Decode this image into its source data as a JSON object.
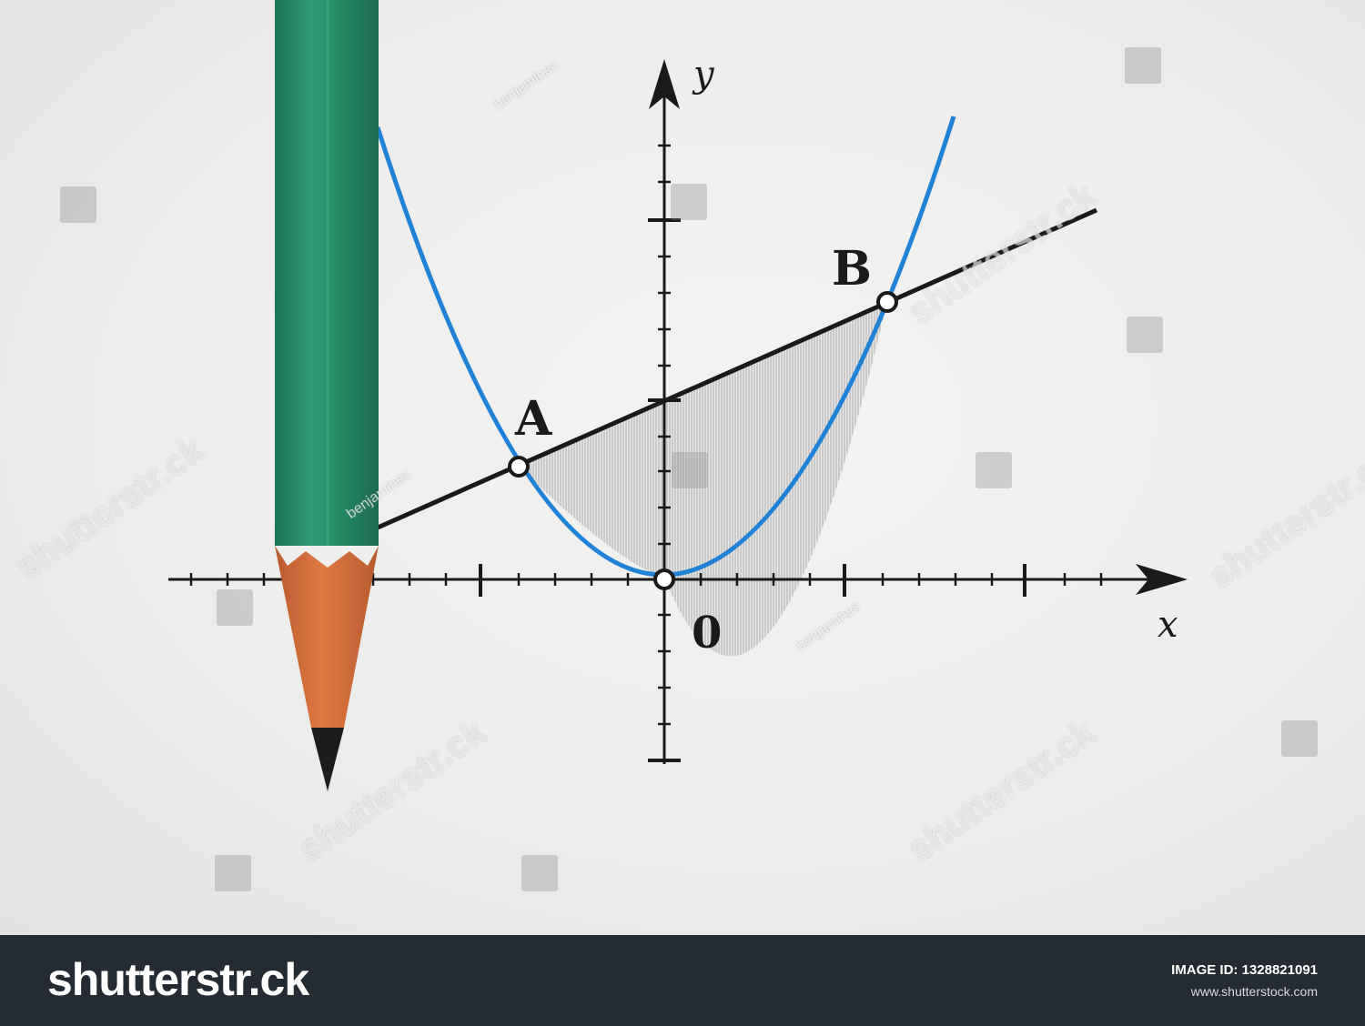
{
  "graph": {
    "point_a_label": "A",
    "point_b_label": "B",
    "origin_label": "0",
    "x_axis_label": "x",
    "y_axis_label": "y"
  },
  "colors": {
    "parabola": "#1f82d6",
    "line": "#1a1a1a",
    "pencil_body": "#2a8f6d",
    "pencil_wood": "#d9703c",
    "footer": "#242b32"
  },
  "watermark": {
    "brand_text": "shutterstr.ck",
    "author_text": "benjaminec"
  },
  "footer": {
    "logo_text": "shutterstr.ck",
    "image_id": "IMAGE ID: 1328821091",
    "url": "www.shutterstock.com"
  }
}
